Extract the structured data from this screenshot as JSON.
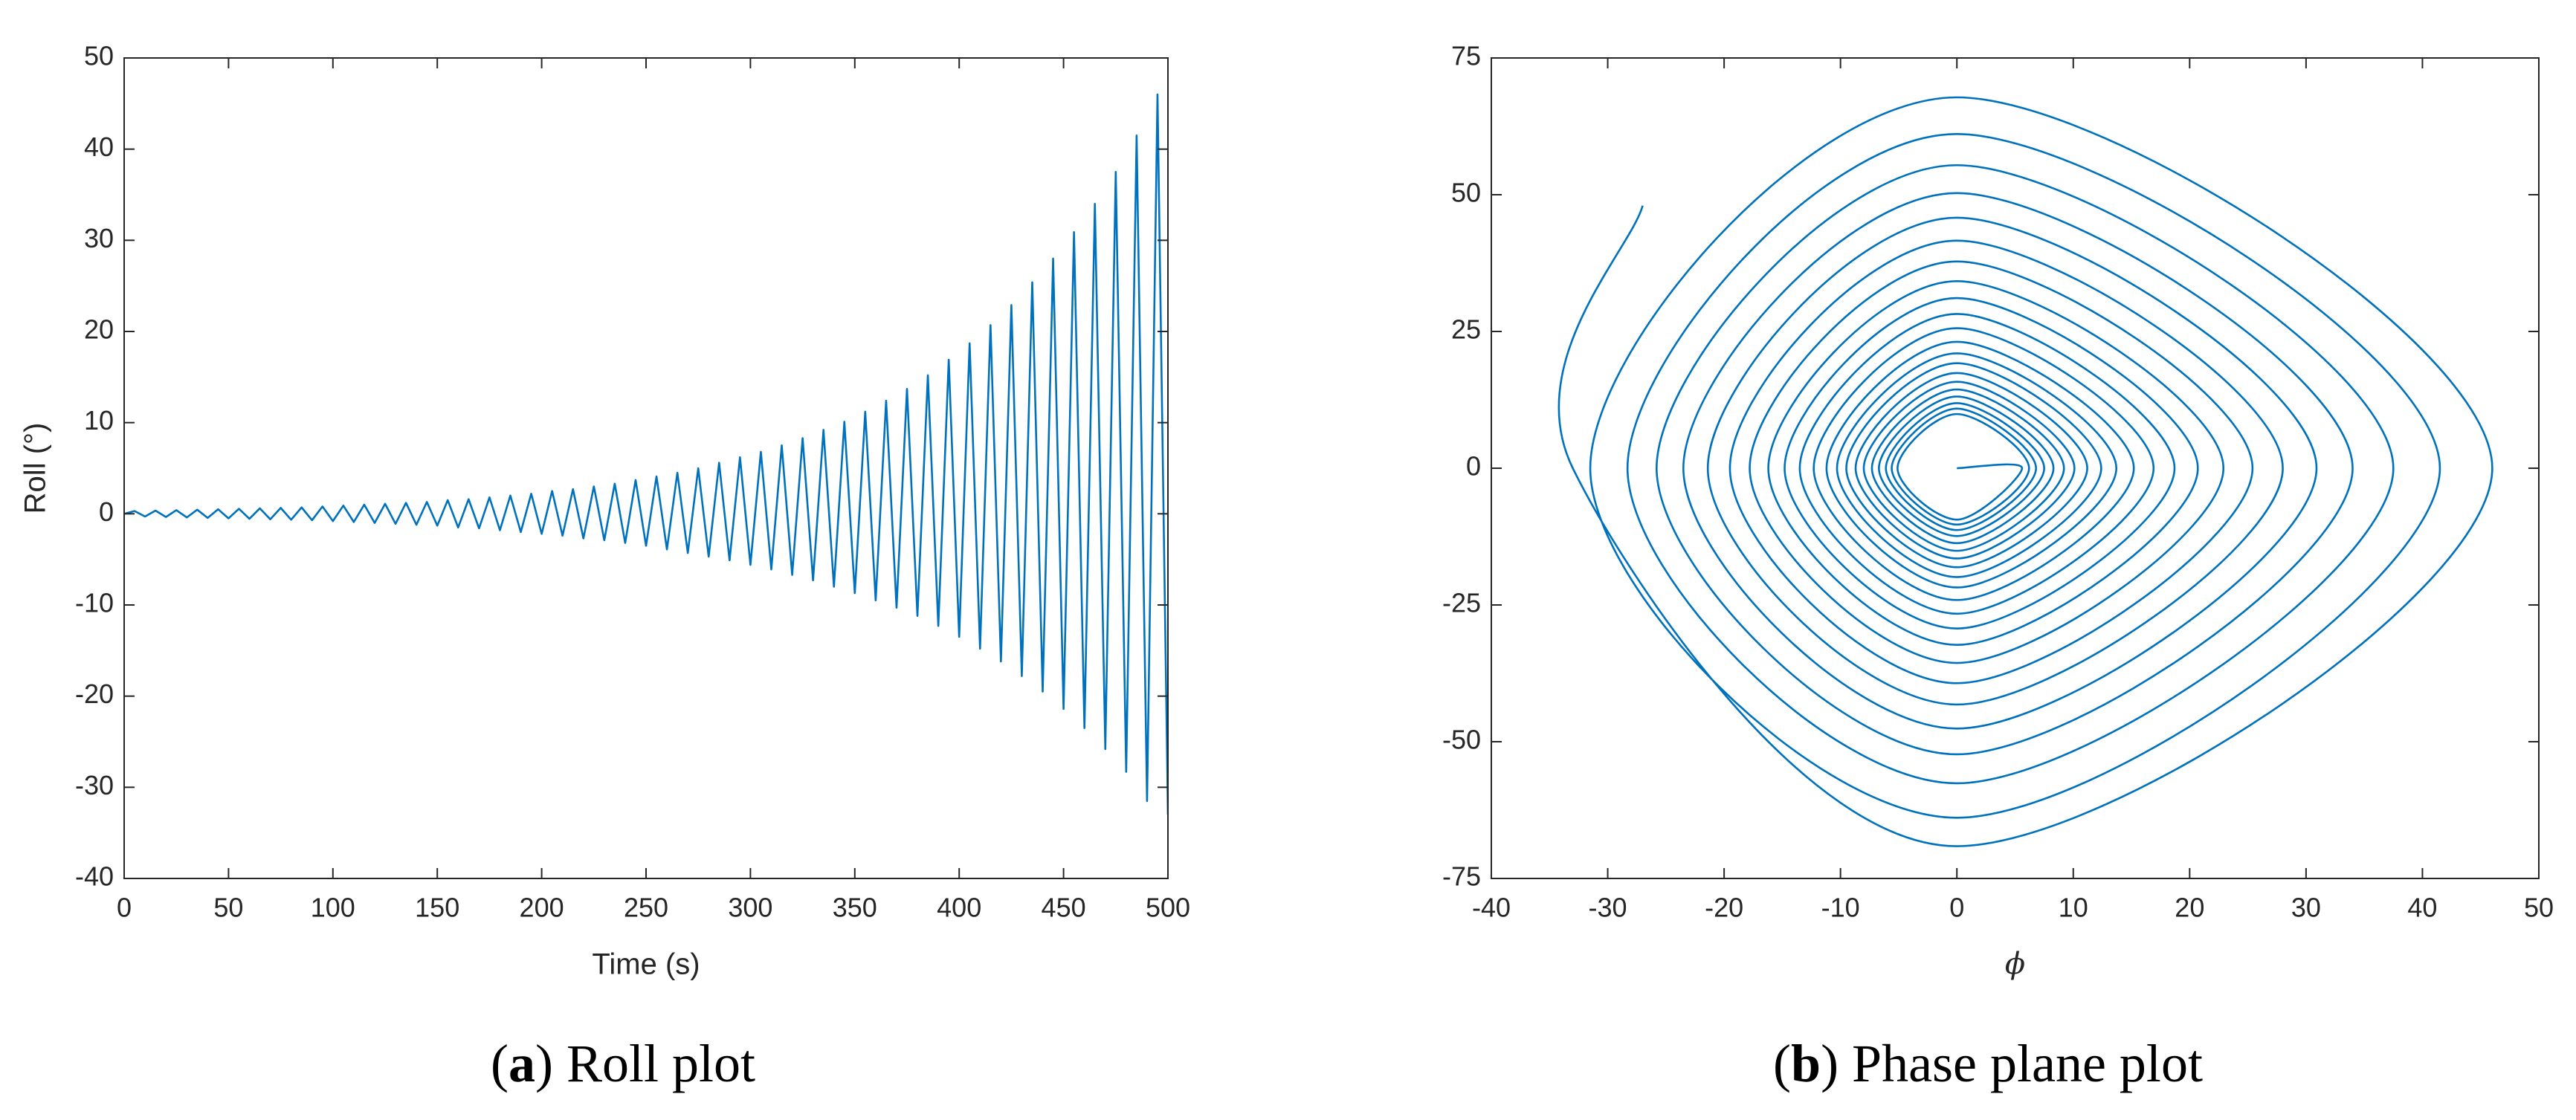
{
  "chart_data": [
    {
      "type": "line",
      "xlabel": "Time (s)",
      "ylabel": "Roll (°)",
      "caption": [
        "(",
        "a",
        ") Roll plot"
      ],
      "color": "#0072bd",
      "smooth": false,
      "xlim": [
        0,
        500
      ],
      "xticks": [
        0,
        50,
        100,
        150,
        200,
        250,
        300,
        350,
        400,
        450,
        500
      ],
      "ylim": [
        -40,
        50
      ],
      "yticks": [
        -40,
        -30,
        -20,
        -10,
        0,
        10,
        20,
        30,
        40,
        50
      ],
      "x": [
        0,
        5,
        10,
        15,
        20,
        25,
        30,
        35,
        40,
        45,
        50,
        55,
        60,
        65,
        70,
        75,
        80,
        85,
        90,
        95,
        100,
        105,
        110,
        115,
        120,
        125,
        130,
        135,
        140,
        145,
        150,
        155,
        160,
        165,
        170,
        175,
        180,
        185,
        190,
        195,
        200,
        205,
        210,
        215,
        220,
        225,
        230,
        235,
        240,
        245,
        250,
        255,
        260,
        265,
        270,
        275,
        280,
        285,
        290,
        295,
        300,
        305,
        310,
        315,
        320,
        325,
        330,
        335,
        340,
        345,
        350,
        355,
        360,
        365,
        370,
        375,
        380,
        385,
        390,
        395,
        400,
        405,
        410,
        415,
        420,
        425,
        430,
        435,
        440,
        445,
        450,
        455,
        460,
        465,
        470,
        475,
        480,
        485,
        490,
        495,
        500
      ],
      "values": [
        0,
        0.3,
        -0.3,
        0.35,
        -0.35,
        0.4,
        -0.4,
        0.45,
        -0.45,
        0.5,
        -0.5,
        0.55,
        -0.55,
        0.6,
        -0.6,
        0.65,
        -0.65,
        0.7,
        -0.7,
        0.8,
        -0.8,
        0.9,
        -0.9,
        1.0,
        -1.0,
        1.1,
        -1.1,
        1.2,
        -1.2,
        1.3,
        -1.3,
        1.5,
        -1.5,
        1.6,
        -1.6,
        1.8,
        -1.8,
        2.0,
        -2.0,
        2.2,
        -2.2,
        2.5,
        -2.4,
        2.7,
        -2.7,
        3.0,
        -2.9,
        3.3,
        -3.2,
        3.7,
        -3.5,
        4.1,
        -3.9,
        4.5,
        -4.3,
        5.0,
        -4.7,
        5.6,
        -5.1,
        6.2,
        -5.6,
        6.8,
        -6.1,
        7.5,
        -6.7,
        8.3,
        -7.3,
        9.2,
        -8.0,
        10.1,
        -8.7,
        11.2,
        -9.5,
        12.4,
        -10.3,
        13.7,
        -11.2,
        15.2,
        -12.3,
        16.9,
        -13.5,
        18.7,
        -14.8,
        20.7,
        -16.2,
        22.9,
        -17.8,
        25.4,
        -19.5,
        28.0,
        -21.4,
        30.9,
        -23.5,
        34.0,
        -25.8,
        37.5,
        -28.3,
        41.5,
        -31.5,
        46.0,
        -33.0
      ]
    },
    {
      "type": "line",
      "xlabel": "ϕ",
      "caption": [
        "(",
        "b",
        ") Phase plane plot"
      ],
      "color": "#0072bd",
      "smooth": true,
      "xlim": [
        -40,
        50
      ],
      "xticks": [
        -40,
        -30,
        -20,
        -10,
        0,
        10,
        20,
        30,
        40,
        50
      ],
      "ylim": [
        -75,
        75
      ],
      "yticks": [
        -75,
        -50,
        -25,
        0,
        25,
        50,
        75
      ],
      "x": [
        0,
        5.6,
        0,
        -5.1,
        0,
        6.2,
        0,
        -5.6,
        0,
        6.8,
        0,
        -6.1,
        0,
        7.5,
        0,
        -6.7,
        0,
        8.3,
        0,
        -7.3,
        0,
        9.2,
        0,
        -8.0,
        0,
        10.1,
        0,
        -8.7,
        0,
        11.2,
        0,
        -9.5,
        0,
        12.4,
        0,
        -10.3,
        0,
        13.7,
        0,
        -11.2,
        0,
        15.2,
        0,
        -12.3,
        0,
        16.9,
        0,
        -13.5,
        0,
        18.7,
        0,
        -14.8,
        0,
        20.7,
        0,
        -16.2,
        0,
        22.9,
        0,
        -17.8,
        0,
        25.4,
        0,
        -19.5,
        0,
        28.0,
        0,
        -21.4,
        0,
        30.9,
        0,
        -23.5,
        0,
        34.0,
        0,
        -25.8,
        0,
        37.5,
        0,
        -28.3,
        0,
        41.5,
        0,
        -31.5,
        0,
        46.0,
        0,
        -33.0,
        -27
      ],
      "values": [
        0,
        0,
        -9.4,
        0,
        9.9,
        0,
        -10.3,
        0,
        10.9,
        0,
        -11.3,
        0,
        11.9,
        0,
        -12.4,
        0,
        13.1,
        0,
        -13.7,
        0,
        14.4,
        0,
        -15.1,
        0,
        15.8,
        0,
        -16.5,
        0,
        17.4,
        0,
        -18.1,
        0,
        19.2,
        0,
        -19.9,
        0,
        21.0,
        0,
        -21.8,
        0,
        23.1,
        0,
        -24.1,
        0,
        25.6,
        0,
        -26.6,
        0,
        28.2,
        0,
        -29.3,
        0,
        31.1,
        0,
        -32.3,
        0,
        34.2,
        0,
        -35.6,
        0,
        37.8,
        0,
        -39.3,
        0,
        41.6,
        0,
        -43.2,
        0,
        45.8,
        0,
        -47.6,
        0,
        50.3,
        0,
        -52.3,
        0,
        55.4,
        0,
        -57.6,
        0,
        61.1,
        0,
        -63.9,
        0,
        67.8,
        0,
        -69.1,
        0,
        48
      ]
    }
  ]
}
